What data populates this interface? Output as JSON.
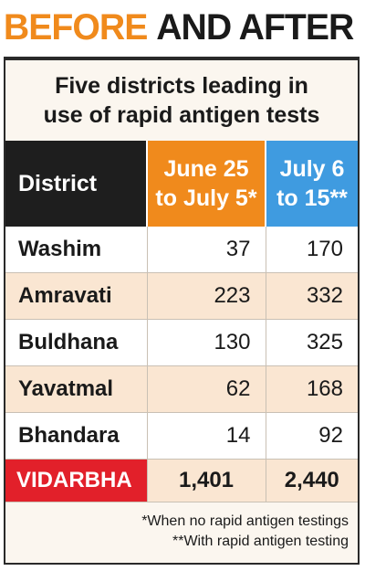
{
  "headline": {
    "part1": "BEFORE",
    "part2": "AND AFTER"
  },
  "subtitle": {
    "line1": "Five districts leading in",
    "line2": "use of rapid antigen tests"
  },
  "table": {
    "headers": {
      "district": "District",
      "col1_line1": "June 25",
      "col1_line2": "to July 5*",
      "col2_line1": "July 6",
      "col2_line2": "to 15**"
    },
    "rows": [
      {
        "district": "Washim",
        "before": "37",
        "after": "170"
      },
      {
        "district": "Amravati",
        "before": "223",
        "after": "332"
      },
      {
        "district": "Buldhana",
        "before": "130",
        "after": "325"
      },
      {
        "district": "Yavatmal",
        "before": "62",
        "after": "168"
      },
      {
        "district": "Bhandara",
        "before": "14",
        "after": "92"
      }
    ],
    "total": {
      "district": "VIDARBHA",
      "before": "1,401",
      "after": "2,440"
    }
  },
  "notes": {
    "note1": "*When no rapid antigen testings",
    "note2": "**With rapid antigen testing"
  },
  "colors": {
    "orange": "#f08a1c",
    "blue": "#3f9be0",
    "red": "#e2202a",
    "dark": "#1e1e1e",
    "peach": "#fae6d2"
  }
}
